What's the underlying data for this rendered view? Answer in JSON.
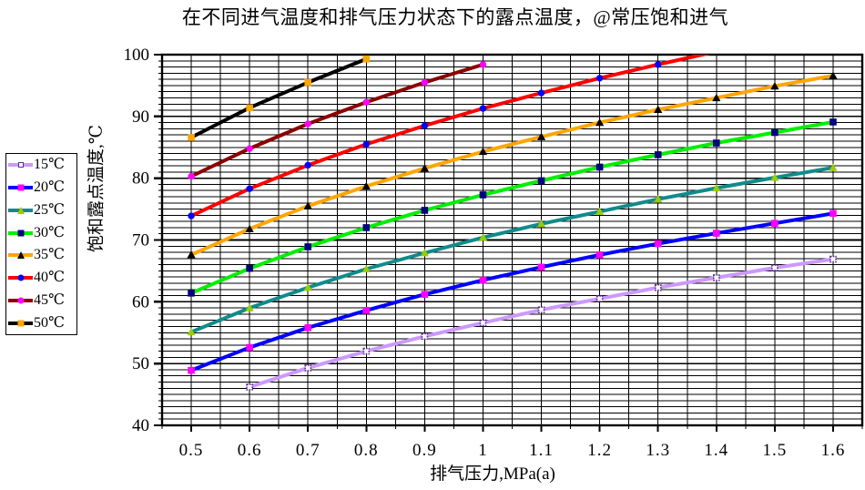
{
  "chart_data": {
    "type": "line",
    "title": "在不同进气温度和排气压力状态下的露点温度，@常压饱和进气",
    "xlabel": "排气压力,MPa(a)",
    "ylabel": "饱和露点温度,℃",
    "xlim": [
      0.45,
      1.65
    ],
    "ylim": [
      40,
      100
    ],
    "x_minor_step": 0.05,
    "y_minor_step": 1,
    "grid": "on-dense-black",
    "legend_position": "left-outside",
    "x_ticks": [
      0.5,
      0.6,
      0.7,
      0.8,
      0.9,
      1.0,
      1.1,
      1.2,
      1.3,
      1.4,
      1.5,
      1.6
    ],
    "x_tick_labels": [
      "0.5",
      "0.6",
      "0.7",
      "0.8",
      "0.9",
      "1",
      "1.1",
      "1.2",
      "1.3",
      "1.4",
      "1.5",
      "1.6"
    ],
    "y_ticks": [
      40,
      50,
      60,
      70,
      80,
      90,
      100
    ],
    "y_tick_labels": [
      "40",
      "50",
      "60",
      "70",
      "80",
      "90",
      "100"
    ],
    "series": [
      {
        "name": "15℃",
        "line_color": "#CC99FF",
        "marker": "open-square",
        "marker_color": "#5B2D8E",
        "x": [
          0.6,
          0.7,
          0.8,
          0.9,
          1.0,
          1.1,
          1.2,
          1.3,
          1.4,
          1.5,
          1.6
        ],
        "values": [
          46.2,
          49.3,
          52.0,
          54.4,
          56.6,
          58.7,
          60.5,
          62.3,
          63.9,
          65.5,
          66.9
        ]
      },
      {
        "name": "20℃",
        "line_color": "#0000FF",
        "marker": "square",
        "marker_color": "#FF00FF",
        "x": [
          0.5,
          0.6,
          0.7,
          0.8,
          0.9,
          1.0,
          1.1,
          1.2,
          1.3,
          1.4,
          1.5,
          1.6
        ],
        "values": [
          48.9,
          52.6,
          55.8,
          58.6,
          61.2,
          63.5,
          65.6,
          67.6,
          69.4,
          71.1,
          72.7,
          74.3
        ]
      },
      {
        "name": "25℃",
        "line_color": "#108B8B",
        "marker": "triangle",
        "marker_color": "#99CC00",
        "x": [
          0.5,
          0.6,
          0.7,
          0.8,
          0.9,
          1.0,
          1.1,
          1.2,
          1.3,
          1.4,
          1.5,
          1.6
        ],
        "values": [
          55.1,
          59.0,
          62.3,
          65.3,
          67.9,
          70.4,
          72.6,
          74.6,
          76.6,
          78.4,
          80.1,
          81.7
        ]
      },
      {
        "name": "30℃",
        "line_color": "#00EE00",
        "marker": "square",
        "marker_color": "#000080",
        "x": [
          0.5,
          0.6,
          0.7,
          0.8,
          0.9,
          1.0,
          1.1,
          1.2,
          1.3,
          1.4,
          1.5,
          1.6
        ],
        "values": [
          61.4,
          65.4,
          68.9,
          72.0,
          74.8,
          77.3,
          79.6,
          81.8,
          83.8,
          85.7,
          87.4,
          89.1
        ]
      },
      {
        "name": "35℃",
        "line_color": "#FFA500",
        "marker": "triangle",
        "marker_color": "#000000",
        "x": [
          0.5,
          0.6,
          0.7,
          0.8,
          0.9,
          1.0,
          1.1,
          1.2,
          1.3,
          1.4,
          1.5,
          1.6
        ],
        "values": [
          67.6,
          71.8,
          75.5,
          78.7,
          81.6,
          84.3,
          86.7,
          89.0,
          91.1,
          93.0,
          94.9,
          96.6
        ]
      },
      {
        "name": "40℃",
        "line_color": "#FF0000",
        "marker": "circle",
        "marker_color": "#0000FF",
        "x": [
          0.5,
          0.6,
          0.7,
          0.8,
          0.9,
          1.0,
          1.1,
          1.2,
          1.3,
          1.4
        ],
        "values": [
          73.9,
          78.3,
          82.1,
          85.5,
          88.5,
          91.3,
          93.8,
          96.2,
          98.4,
          100.5
        ]
      },
      {
        "name": "45℃",
        "line_color": "#8B0000",
        "marker": "circle",
        "marker_color": "#FF00FF",
        "x": [
          0.5,
          0.6,
          0.7,
          0.8,
          0.9,
          1.0
        ],
        "values": [
          80.3,
          84.8,
          88.8,
          92.3,
          95.5,
          98.4
        ]
      },
      {
        "name": "50℃",
        "line_color": "#000000",
        "marker": "square",
        "marker_color": "#FFA500",
        "x": [
          0.5,
          0.6,
          0.7,
          0.8
        ],
        "values": [
          86.6,
          91.4,
          95.5,
          99.3
        ]
      }
    ],
    "colors": {
      "background": "#FFFFFF",
      "plot_background": "#FFFFFF",
      "grid": "#000000",
      "border": "#000000",
      "text": "#000000"
    }
  }
}
